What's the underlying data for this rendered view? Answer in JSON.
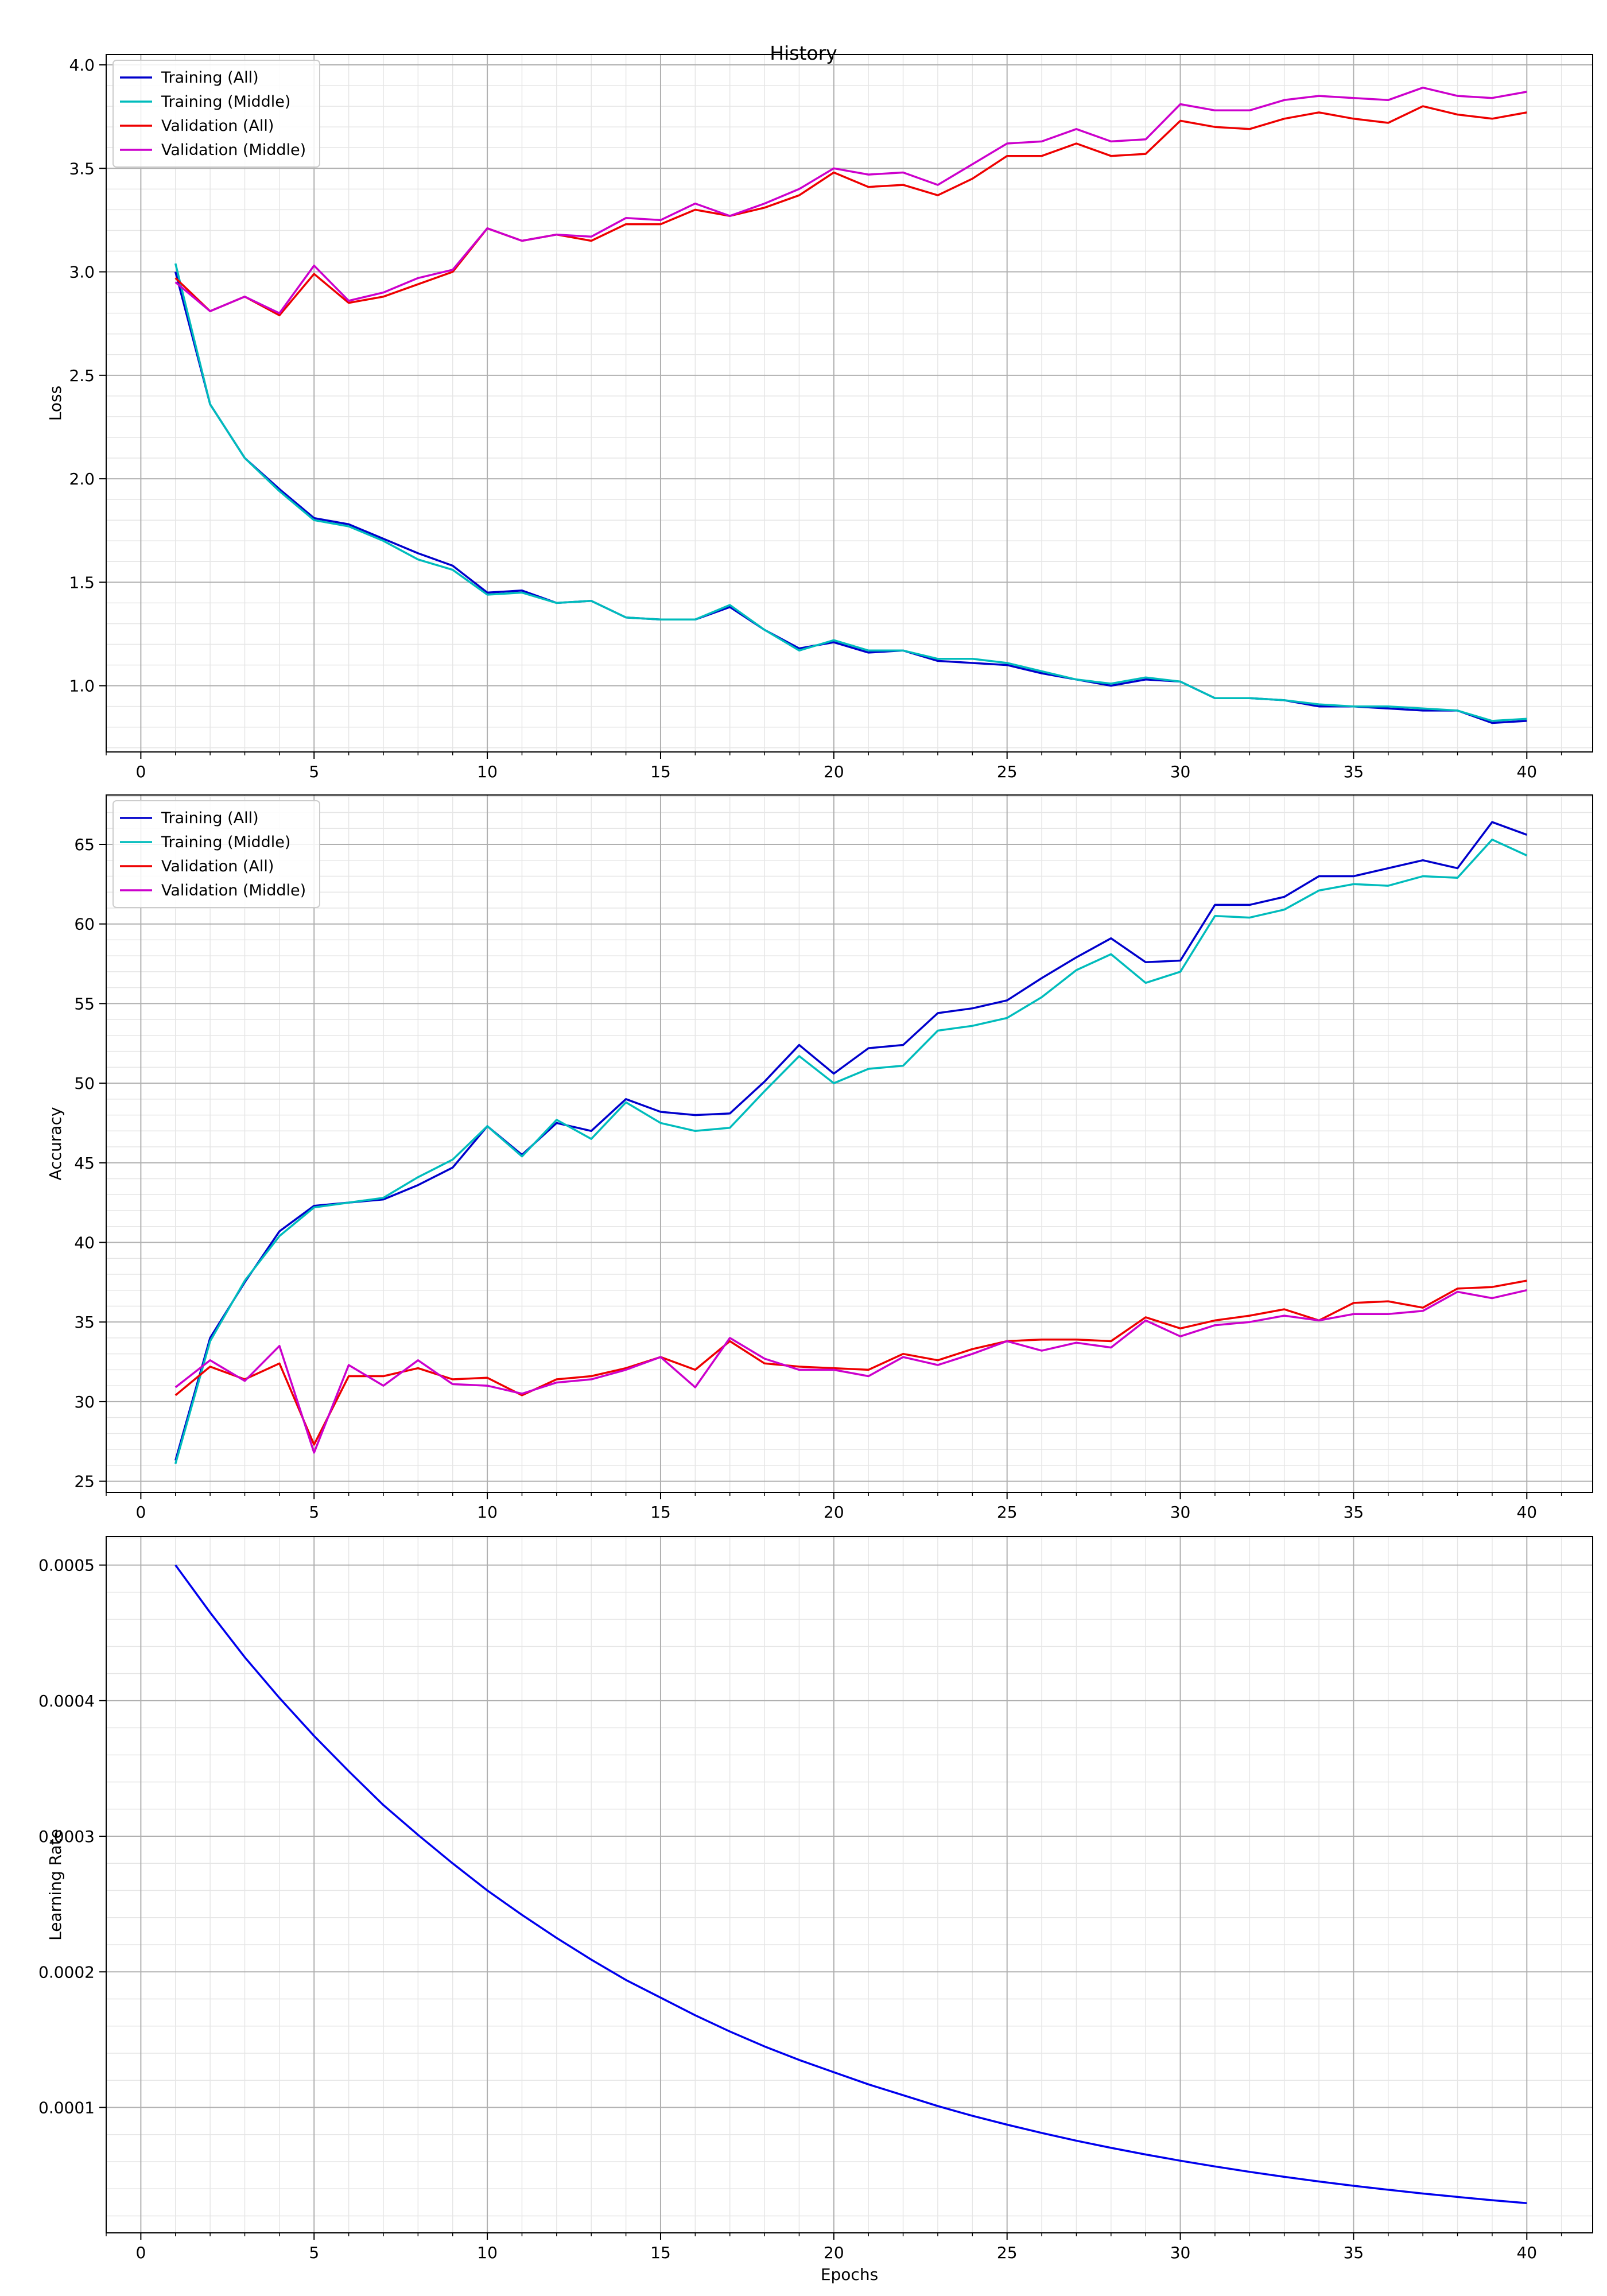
{
  "title": "History",
  "colors": {
    "training_all": "#0000cc",
    "training_middle": "#00bcbc",
    "validation_all": "#ee0000",
    "validation_middle": "#cc00cc",
    "lr": "#0000ee",
    "grid_major": "#b0b0b0",
    "grid_minor": "#e6e6e6"
  },
  "chart_data": [
    {
      "type": "line",
      "title": "History",
      "xlabel": "",
      "ylabel": "Loss",
      "xlim": [
        -1,
        41.9
      ],
      "ylim": [
        0.68,
        4.05
      ],
      "xticks": [
        0,
        5,
        10,
        15,
        20,
        25,
        30,
        35,
        40
      ],
      "yticks": [
        1.0,
        1.5,
        2.0,
        2.5,
        3.0,
        3.5,
        4.0
      ],
      "ytick_labels": [
        "1.0",
        "1.5",
        "2.0",
        "2.5",
        "3.0",
        "3.5",
        "4.0"
      ],
      "grid": true,
      "legend": "top-left",
      "x": [
        1,
        2,
        3,
        4,
        5,
        6,
        7,
        8,
        9,
        10,
        11,
        12,
        13,
        14,
        15,
        16,
        17,
        18,
        19,
        20,
        21,
        22,
        23,
        24,
        25,
        26,
        27,
        28,
        29,
        30,
        31,
        32,
        33,
        34,
        35,
        36,
        37,
        38,
        39,
        40
      ],
      "series": [
        {
          "name": "Training (All)",
          "color_key": "training_all",
          "values": [
            3.0,
            2.36,
            2.1,
            1.95,
            1.81,
            1.78,
            1.71,
            1.64,
            1.58,
            1.45,
            1.46,
            1.4,
            1.41,
            1.33,
            1.32,
            1.32,
            1.38,
            1.27,
            1.18,
            1.21,
            1.16,
            1.17,
            1.12,
            1.11,
            1.1,
            1.06,
            1.03,
            1.0,
            1.03,
            1.02,
            0.94,
            0.94,
            0.93,
            0.9,
            0.9,
            0.89,
            0.88,
            0.88,
            0.82,
            0.83
          ]
        },
        {
          "name": "Training (Middle)",
          "color_key": "training_middle",
          "values": [
            3.04,
            2.36,
            2.1,
            1.94,
            1.8,
            1.77,
            1.7,
            1.61,
            1.56,
            1.44,
            1.45,
            1.4,
            1.41,
            1.33,
            1.32,
            1.32,
            1.39,
            1.27,
            1.17,
            1.22,
            1.17,
            1.17,
            1.13,
            1.13,
            1.11,
            1.07,
            1.03,
            1.01,
            1.04,
            1.02,
            0.94,
            0.94,
            0.93,
            0.91,
            0.9,
            0.9,
            0.89,
            0.88,
            0.83,
            0.84
          ]
        },
        {
          "name": "Validation (All)",
          "color_key": "validation_all",
          "values": [
            2.97,
            2.81,
            2.88,
            2.79,
            2.99,
            2.85,
            2.88,
            2.94,
            3.0,
            3.21,
            3.15,
            3.18,
            3.15,
            3.23,
            3.23,
            3.3,
            3.27,
            3.31,
            3.37,
            3.48,
            3.41,
            3.42,
            3.37,
            3.45,
            3.56,
            3.56,
            3.62,
            3.56,
            3.57,
            3.73,
            3.7,
            3.69,
            3.74,
            3.77,
            3.74,
            3.72,
            3.8,
            3.76,
            3.74,
            3.77
          ]
        },
        {
          "name": "Validation (Middle)",
          "color_key": "validation_middle",
          "values": [
            2.95,
            2.81,
            2.88,
            2.8,
            3.03,
            2.86,
            2.9,
            2.97,
            3.01,
            3.21,
            3.15,
            3.18,
            3.17,
            3.26,
            3.25,
            3.33,
            3.27,
            3.33,
            3.4,
            3.5,
            3.47,
            3.48,
            3.42,
            3.52,
            3.62,
            3.63,
            3.69,
            3.63,
            3.64,
            3.81,
            3.78,
            3.78,
            3.83,
            3.85,
            3.84,
            3.83,
            3.89,
            3.85,
            3.84,
            3.87
          ]
        }
      ]
    },
    {
      "type": "line",
      "title": "",
      "xlabel": "",
      "ylabel": "Accuracy",
      "xlim": [
        -1,
        41.9
      ],
      "ylim": [
        24.3,
        68.1
      ],
      "xticks": [
        0,
        5,
        10,
        15,
        20,
        25,
        30,
        35,
        40
      ],
      "yticks": [
        25,
        30,
        35,
        40,
        45,
        50,
        55,
        60,
        65
      ],
      "ytick_labels": [
        "25",
        "30",
        "35",
        "40",
        "45",
        "50",
        "55",
        "60",
        "65"
      ],
      "grid": true,
      "legend": "top-left",
      "x": [
        1,
        2,
        3,
        4,
        5,
        6,
        7,
        8,
        9,
        10,
        11,
        12,
        13,
        14,
        15,
        16,
        17,
        18,
        19,
        20,
        21,
        22,
        23,
        24,
        25,
        26,
        27,
        28,
        29,
        30,
        31,
        32,
        33,
        34,
        35,
        36,
        37,
        38,
        39,
        40
      ],
      "series": [
        {
          "name": "Training (All)",
          "color_key": "training_all",
          "values": [
            26.3,
            34.0,
            37.5,
            40.7,
            42.3,
            42.5,
            42.7,
            43.6,
            44.7,
            47.3,
            45.5,
            47.5,
            47.0,
            49.0,
            48.2,
            48.0,
            48.1,
            50.1,
            52.4,
            50.6,
            52.2,
            52.4,
            54.4,
            54.7,
            55.2,
            56.6,
            57.9,
            59.1,
            57.6,
            57.7,
            61.2,
            61.2,
            61.7,
            63.0,
            63.0,
            63.5,
            64.0,
            63.5,
            66.4,
            65.6
          ]
        },
        {
          "name": "Training (Middle)",
          "color_key": "training_middle",
          "values": [
            26.1,
            33.8,
            37.6,
            40.4,
            42.2,
            42.5,
            42.8,
            44.1,
            45.2,
            47.3,
            45.4,
            47.7,
            46.5,
            48.8,
            47.5,
            47.0,
            47.2,
            49.5,
            51.7,
            50.0,
            50.9,
            51.1,
            53.3,
            53.6,
            54.1,
            55.4,
            57.1,
            58.1,
            56.3,
            57.0,
            60.5,
            60.4,
            60.9,
            62.1,
            62.5,
            62.4,
            63.0,
            62.9,
            65.3,
            64.3
          ]
        },
        {
          "name": "Validation (All)",
          "color_key": "validation_all",
          "values": [
            30.4,
            32.2,
            31.4,
            32.4,
            27.3,
            31.6,
            31.6,
            32.1,
            31.4,
            31.5,
            30.4,
            31.4,
            31.6,
            32.1,
            32.8,
            32.0,
            33.8,
            32.4,
            32.2,
            32.1,
            32.0,
            33.0,
            32.6,
            33.3,
            33.8,
            33.9,
            33.9,
            33.8,
            35.3,
            34.6,
            35.1,
            35.4,
            35.8,
            35.1,
            36.2,
            36.3,
            35.9,
            37.1,
            37.2,
            37.6
          ]
        },
        {
          "name": "Validation (Middle)",
          "color_key": "validation_middle",
          "values": [
            30.9,
            32.6,
            31.3,
            33.5,
            26.8,
            32.3,
            31.0,
            32.6,
            31.1,
            31.0,
            30.5,
            31.2,
            31.4,
            32.0,
            32.8,
            30.9,
            34.0,
            32.7,
            32.0,
            32.0,
            31.6,
            32.8,
            32.3,
            33.0,
            33.8,
            33.2,
            33.7,
            33.4,
            35.1,
            34.1,
            34.8,
            35.0,
            35.4,
            35.1,
            35.5,
            35.5,
            35.7,
            36.9,
            36.5,
            37.0
          ]
        }
      ]
    },
    {
      "type": "line",
      "title": "",
      "xlabel": "Epochs",
      "ylabel": "Learning Rate",
      "xlim": [
        -1,
        41.9
      ],
      "ylim": [
        7.5e-06,
        0.000521
      ],
      "xticks": [
        0,
        5,
        10,
        15,
        20,
        25,
        30,
        35,
        40
      ],
      "yticks": [
        0.0001,
        0.0002,
        0.0003,
        0.0004,
        0.0005
      ],
      "ytick_labels": [
        "0.0001",
        "0.0002",
        "0.0003",
        "0.0004",
        "0.0005"
      ],
      "grid": true,
      "legend": "none",
      "x": [
        1,
        2,
        3,
        4,
        5,
        6,
        7,
        8,
        9,
        10,
        11,
        12,
        13,
        14,
        15,
        16,
        17,
        18,
        19,
        20,
        21,
        22,
        23,
        24,
        25,
        26,
        27,
        28,
        29,
        30,
        31,
        32,
        33,
        34,
        35,
        36,
        37,
        38,
        39,
        40
      ],
      "series": [
        {
          "color_key": "lr",
          "values": [
            0.0005,
            0.000465,
            0.000432,
            0.000402,
            0.000374,
            0.000348,
            0.000323,
            0.000301,
            0.00028,
            0.00026,
            0.000242,
            0.000225,
            0.000209,
            0.000194,
            0.000181,
            0.000168,
            0.000156,
            0.000145,
            0.000135,
            0.000126,
            0.000117,
            0.000109,
            0.000101,
            9.38e-05,
            8.73e-05,
            8.12e-05,
            7.55e-05,
            7.02e-05,
            6.53e-05,
            6.07e-05,
            5.65e-05,
            5.25e-05,
            4.88e-05,
            4.54e-05,
            4.22e-05,
            3.93e-05,
            3.65e-05,
            3.4e-05,
            3.16e-05,
            2.94e-05
          ]
        }
      ]
    }
  ]
}
